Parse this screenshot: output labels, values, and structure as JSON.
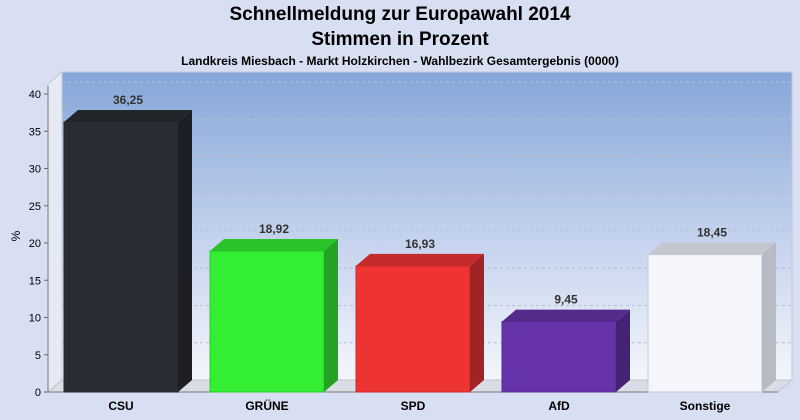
{
  "header": {
    "title_line1": "Schnellmeldung zur Europawahl 2014",
    "title_line2": "Stimmen in Prozent",
    "subtitle": "Landkreis Miesbach - Markt Holzkirchen - Wahlbezirk Gesamtergebnis (0000)"
  },
  "chart_data": {
    "type": "bar",
    "title": "Schnellmeldung zur Europawahl 2014 - Stimmen in Prozent",
    "subtitle": "Landkreis Miesbach - Markt Holzkirchen - Wahlbezirk Gesamtergebnis (0000)",
    "xlabel": "",
    "ylabel": "%",
    "ylim": [
      0,
      40
    ],
    "yticks": [
      0,
      5,
      10,
      15,
      20,
      25,
      30,
      35,
      40
    ],
    "grid": true,
    "categories": [
      "CSU",
      "GRÜNE",
      "SPD",
      "AfD",
      "Sonstige"
    ],
    "values": [
      36.25,
      18.92,
      16.93,
      9.45,
      18.45
    ],
    "value_labels": [
      "36,25",
      "18,92",
      "16,93",
      "9,45",
      "18,45"
    ],
    "colors": [
      "#2a2d33",
      "#33ee33",
      "#ee3333",
      "#6633aa",
      "#f4f6fc"
    ]
  }
}
